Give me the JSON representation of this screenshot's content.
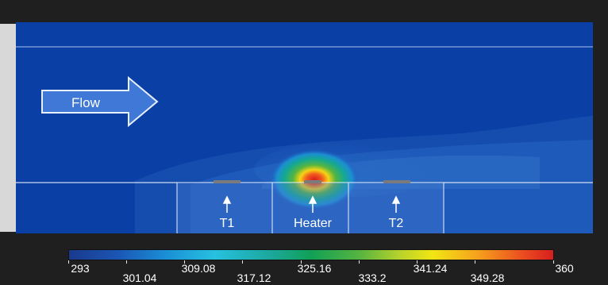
{
  "diagram": {
    "flow_label": "Flow",
    "sensors": [
      {
        "label": "T1"
      },
      {
        "label": "Heater"
      },
      {
        "label": "T2"
      }
    ]
  },
  "colorbar": {
    "min": 293,
    "max": 360,
    "labels_top": [
      "293",
      "309.08",
      "325.16",
      "341.24",
      "360"
    ],
    "labels_bottom": [
      "301.04",
      "317.12",
      "333.2",
      "349.28"
    ]
  },
  "colors": {
    "channel_blue": "#0a3fa5",
    "hot": "#d61f1e",
    "line": "#ffffff"
  }
}
